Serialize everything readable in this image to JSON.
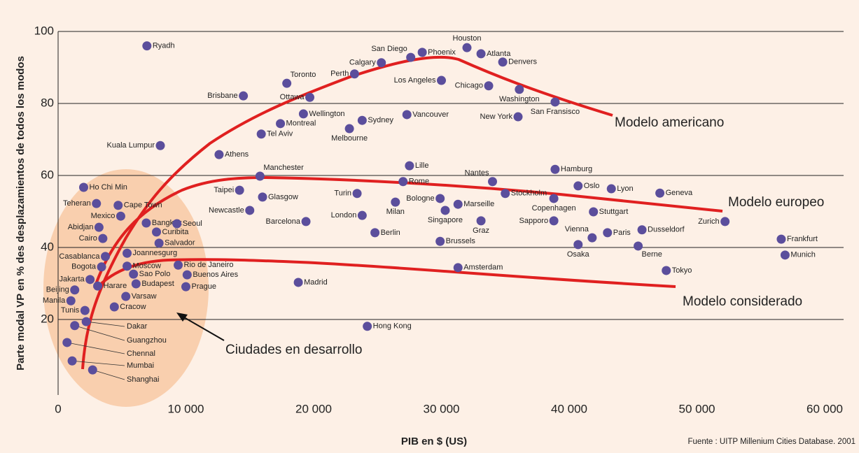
{
  "chart_data": {
    "type": "scatter",
    "x_label": "PIB en $ (US)",
    "y_label": "Parte modal VP en % des desplazamientos de todos los modos",
    "source": "Fuente : UITP Millenium Cities Database. 2001",
    "annotations": [
      "Modelo americano",
      "Modelo europeo",
      "Modelo considerado",
      "Ciudades en desarrollo"
    ],
    "xlim": [
      0,
      60000
    ],
    "ylim": [
      0,
      100
    ],
    "xticks": [
      0,
      {
        "value": 10000,
        "label": "10 000"
      },
      {
        "value": 20000,
        "label": "20 000"
      },
      {
        "value": 30000,
        "label": "30 000"
      },
      {
        "value": 40000,
        "label": "40 000"
      },
      {
        "value": 50000,
        "label": "50 000"
      },
      {
        "value": 60000,
        "label": "60 000"
      }
    ],
    "yticks": [
      20,
      40,
      60,
      80,
      100
    ],
    "grid": true,
    "curve_color": "#e02020",
    "series": [
      {
        "color": "#5b4e9c",
        "point_labels": [
          "Ryadh",
          "Houston",
          "Atlanta",
          "Phoenix",
          "San Diego",
          "Calgary",
          "Denvers",
          "Perth",
          "Toronto",
          "Los Angeles",
          "Chicago",
          "Washington",
          "Brisbane",
          "Ottawa",
          "San Fransisco",
          "Wellington",
          "Vancouver",
          "New York",
          "Montreal",
          "Sydney",
          "Melbourne",
          "Tel Aviv",
          "Kuala Lumpur",
          "Athens",
          "Lille",
          "Manchester",
          "Hamburg",
          "Nantes",
          "Rome",
          "Ho Chi Min",
          "Oslo",
          "Lyon",
          "Taipei",
          "Turin",
          "Geneva",
          "Stockholm",
          "Glasgow",
          "Bologne",
          "Copenhagen",
          "Teheran",
          "Milan",
          "Marseille",
          "Cape Town",
          "Singapore",
          "Newcastle",
          "Stuttgart",
          "Mexico",
          "London",
          "Zurich",
          "Barcelona",
          "Sapporo",
          "Graz",
          "Bangkok",
          "Seoul",
          "Abidjan",
          "Dusseldorf",
          "Curibita",
          "Berlin",
          "Paris",
          "Brussels",
          "Cairo",
          "Vienna",
          "Salvador",
          "Frankfurt",
          "Osaka",
          "Berne",
          "Joannesgurg",
          "Munich",
          "Casablanca",
          "Moscow",
          "Rio de Janeiro",
          "Bogota",
          "Amsterdam",
          "Tokyo",
          "Sao Polo",
          "Buenos Aires",
          "Jakarta",
          "Madrid",
          "Budapest",
          "Harare",
          "Prague",
          "Beijing",
          "Varsaw",
          "Manila",
          "Cracow",
          "Tunis",
          "Dakar",
          "Hong Kong",
          "Guangzhou",
          "Chennal",
          "Mumbai",
          "Shanghai"
        ],
        "x": [
          6950,
          32000,
          33100,
          28500,
          27600,
          25300,
          34800,
          23200,
          17900,
          30000,
          33700,
          36100,
          14500,
          19700,
          38900,
          19200,
          27300,
          36000,
          17400,
          23800,
          22800,
          15900,
          8000,
          12600,
          27500,
          15800,
          38900,
          34000,
          27000,
          2000,
          40700,
          43300,
          14200,
          23400,
          47100,
          35000,
          16000,
          29900,
          38800,
          3000,
          26400,
          31300,
          4700,
          30300,
          15000,
          41900,
          4900,
          23800,
          52200,
          19400,
          38800,
          33100,
          6900,
          9300,
          3200,
          45700,
          7700,
          24800,
          43000,
          29900,
          3500,
          41800,
          7900,
          56600,
          40700,
          45400,
          5400,
          56900,
          3700,
          5400,
          9400,
          3400,
          31300,
          47600,
          5900,
          10100,
          2500,
          18800,
          6100,
          3100,
          10000,
          1300,
          5300,
          1000,
          4400,
          2100,
          2200,
          24200,
          1300,
          700,
          1100,
          2700
        ],
        "values": [
          96,
          95.5,
          93.8,
          94.2,
          92.8,
          91.3,
          91.5,
          88.2,
          85.6,
          86.4,
          84.9,
          83.9,
          82.1,
          81.7,
          80.4,
          77.1,
          76.9,
          76.3,
          74.4,
          75.3,
          73,
          71.5,
          68.3,
          65.8,
          62.7,
          59.8,
          61.7,
          58.3,
          58.3,
          56.7,
          57.1,
          56.3,
          55.9,
          55,
          55.1,
          55,
          54,
          53.6,
          53.6,
          52.2,
          52.6,
          52,
          51.7,
          50.3,
          50.3,
          49.9,
          48.7,
          48.9,
          47.2,
          47.2,
          47.4,
          47.4,
          46.8,
          46.6,
          45.6,
          44.9,
          44.3,
          44.1,
          44.1,
          41.7,
          42.5,
          42.7,
          41.2,
          42.3,
          40.8,
          40.4,
          38.4,
          37.9,
          37.5,
          34.8,
          35.1,
          34.6,
          34.4,
          33.6,
          32.6,
          32.4,
          31.1,
          30.3,
          29.9,
          29.3,
          29.1,
          28.2,
          26.4,
          25.2,
          23.5,
          22.5,
          19.4,
          18.1,
          18.3,
          13.6,
          8.5,
          6
        ]
      }
    ]
  }
}
